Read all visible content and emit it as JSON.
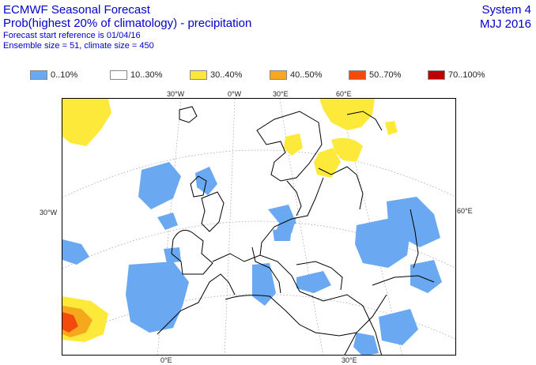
{
  "header": {
    "title": "ECMWF Seasonal Forecast",
    "subtitle": "Prob(highest 20% of climatology) - precipitation",
    "start_ref": "Forecast start reference is 01/04/16",
    "ensemble": "Ensemble size = 51, climate size = 450",
    "system": "System 4",
    "period": "MJJ 2016"
  },
  "legend": [
    {
      "label": "0..10%",
      "color": "#6aa9f2"
    },
    {
      "label": "10..30%",
      "color": "#ffffff"
    },
    {
      "label": "30..40%",
      "color": "#fde93a"
    },
    {
      "label": "40..50%",
      "color": "#f6a81c"
    },
    {
      "label": "50..70%",
      "color": "#f44a0c"
    },
    {
      "label": "70..100%",
      "color": "#c00000"
    }
  ],
  "map": {
    "projection": "polar-stereographic",
    "region": "Europe / North Africa",
    "colors": {
      "land_outline": "#000000",
      "graticule": "#9a9a9a",
      "frame": "#000000"
    },
    "grid_labels": {
      "top": [
        "30°W",
        "0°W",
        "30°E",
        "60°E"
      ],
      "left": [
        "30°W"
      ],
      "right": [
        "60°E"
      ],
      "bottom": [
        "0°E",
        "30°E"
      ]
    }
  }
}
